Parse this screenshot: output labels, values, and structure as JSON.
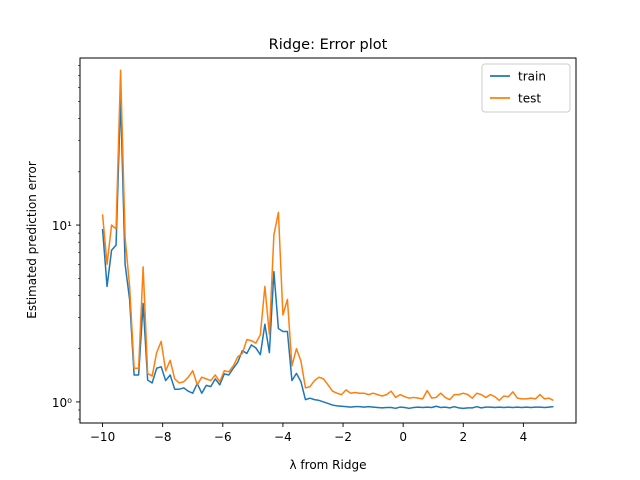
{
  "chart_data": {
    "type": "line",
    "title": "Ridge: Error plot",
    "xlabel": "λ from Ridge",
    "ylabel": "Estimated prediction error",
    "yscale": "log",
    "xlim": [
      -10.75,
      5.75
    ],
    "ylim": [
      0.76,
      88
    ],
    "x_ticks": [
      -10,
      -8,
      -6,
      -4,
      -2,
      0,
      2,
      4
    ],
    "x_tick_labels": [
      "−10",
      "−8",
      "−6",
      "−4",
      "−2",
      "0",
      "2",
      "4"
    ],
    "y_ticks": [
      1,
      10
    ],
    "y_tick_labels": [
      "10⁰",
      "10¹"
    ],
    "legend_position": "top-right",
    "series": [
      {
        "name": "train",
        "color": "#1f77b4",
        "points": [
          [
            -10.0,
            9.5
          ],
          [
            -9.85,
            4.5
          ],
          [
            -9.7,
            7.2
          ],
          [
            -9.55,
            7.7
          ],
          [
            -9.4,
            52.0
          ],
          [
            -9.25,
            6.0
          ],
          [
            -9.1,
            3.8
          ],
          [
            -8.95,
            1.42
          ],
          [
            -8.8,
            1.42
          ],
          [
            -8.65,
            3.6
          ],
          [
            -8.5,
            1.33
          ],
          [
            -8.35,
            1.28
          ],
          [
            -8.2,
            1.55
          ],
          [
            -8.05,
            1.58
          ],
          [
            -7.9,
            1.32
          ],
          [
            -7.75,
            1.42
          ],
          [
            -7.6,
            1.18
          ],
          [
            -7.45,
            1.18
          ],
          [
            -7.3,
            1.2
          ],
          [
            -7.15,
            1.15
          ],
          [
            -7.0,
            1.12
          ],
          [
            -6.85,
            1.27
          ],
          [
            -6.7,
            1.12
          ],
          [
            -6.55,
            1.24
          ],
          [
            -6.4,
            1.22
          ],
          [
            -6.25,
            1.35
          ],
          [
            -6.1,
            1.25
          ],
          [
            -5.95,
            1.44
          ],
          [
            -5.8,
            1.42
          ],
          [
            -5.65,
            1.55
          ],
          [
            -5.5,
            1.68
          ],
          [
            -5.35,
            1.95
          ],
          [
            -5.2,
            1.88
          ],
          [
            -5.05,
            2.1
          ],
          [
            -4.9,
            2.02
          ],
          [
            -4.75,
            1.85
          ],
          [
            -4.6,
            2.75
          ],
          [
            -4.45,
            1.9
          ],
          [
            -4.3,
            5.45
          ],
          [
            -4.15,
            2.6
          ],
          [
            -4.0,
            2.5
          ],
          [
            -3.85,
            2.5
          ],
          [
            -3.7,
            1.32
          ],
          [
            -3.55,
            1.45
          ],
          [
            -3.4,
            1.3
          ],
          [
            -3.25,
            1.03
          ],
          [
            -3.1,
            1.05
          ],
          [
            -2.95,
            1.03
          ],
          [
            -2.8,
            1.02
          ],
          [
            -2.65,
            1.0
          ],
          [
            -2.5,
            0.98
          ],
          [
            -2.35,
            0.96
          ],
          [
            -2.2,
            0.95
          ],
          [
            -2.05,
            0.945
          ],
          [
            -1.9,
            0.94
          ],
          [
            -1.75,
            0.935
          ],
          [
            -1.6,
            0.94
          ],
          [
            -1.45,
            0.94
          ],
          [
            -1.3,
            0.935
          ],
          [
            -1.15,
            0.94
          ],
          [
            -1.0,
            0.935
          ],
          [
            -0.85,
            0.93
          ],
          [
            -0.7,
            0.925
          ],
          [
            -0.55,
            0.93
          ],
          [
            -0.4,
            0.93
          ],
          [
            -0.25,
            0.92
          ],
          [
            -0.1,
            0.935
          ],
          [
            0.05,
            0.93
          ],
          [
            0.2,
            0.92
          ],
          [
            0.35,
            0.93
          ],
          [
            0.5,
            0.935
          ],
          [
            0.65,
            0.93
          ],
          [
            0.8,
            0.935
          ],
          [
            0.95,
            0.93
          ],
          [
            1.1,
            0.945
          ],
          [
            1.25,
            0.93
          ],
          [
            1.4,
            0.935
          ],
          [
            1.55,
            0.925
          ],
          [
            1.7,
            0.94
          ],
          [
            1.85,
            0.925
          ],
          [
            2.0,
            0.92
          ],
          [
            2.15,
            0.925
          ],
          [
            2.3,
            0.925
          ],
          [
            2.45,
            0.94
          ],
          [
            2.6,
            0.925
          ],
          [
            2.75,
            0.935
          ],
          [
            2.9,
            0.935
          ],
          [
            3.05,
            0.93
          ],
          [
            3.2,
            0.935
          ],
          [
            3.35,
            0.93
          ],
          [
            3.5,
            0.935
          ],
          [
            3.65,
            0.93
          ],
          [
            3.8,
            0.935
          ],
          [
            3.95,
            0.93
          ],
          [
            4.1,
            0.935
          ],
          [
            4.25,
            0.93
          ],
          [
            4.4,
            0.935
          ],
          [
            4.55,
            0.935
          ],
          [
            4.7,
            0.93
          ],
          [
            4.85,
            0.935
          ],
          [
            5.0,
            0.94
          ]
        ]
      },
      {
        "name": "test",
        "color": "#ff7f0e",
        "points": [
          [
            -10.0,
            11.5
          ],
          [
            -9.85,
            6.0
          ],
          [
            -9.7,
            10.0
          ],
          [
            -9.55,
            9.5
          ],
          [
            -9.4,
            75.0
          ],
          [
            -9.25,
            8.5
          ],
          [
            -9.1,
            4.5
          ],
          [
            -8.95,
            1.55
          ],
          [
            -8.8,
            1.55
          ],
          [
            -8.65,
            5.8
          ],
          [
            -8.5,
            1.45
          ],
          [
            -8.35,
            1.4
          ],
          [
            -8.2,
            1.9
          ],
          [
            -8.05,
            2.2
          ],
          [
            -7.9,
            1.5
          ],
          [
            -7.75,
            1.72
          ],
          [
            -7.6,
            1.35
          ],
          [
            -7.45,
            1.28
          ],
          [
            -7.3,
            1.3
          ],
          [
            -7.15,
            1.38
          ],
          [
            -7.0,
            1.5
          ],
          [
            -6.85,
            1.25
          ],
          [
            -6.7,
            1.38
          ],
          [
            -6.55,
            1.35
          ],
          [
            -6.4,
            1.32
          ],
          [
            -6.25,
            1.42
          ],
          [
            -6.1,
            1.3
          ],
          [
            -5.95,
            1.5
          ],
          [
            -5.8,
            1.48
          ],
          [
            -5.65,
            1.6
          ],
          [
            -5.5,
            1.8
          ],
          [
            -5.35,
            1.88
          ],
          [
            -5.2,
            2.25
          ],
          [
            -5.05,
            2.22
          ],
          [
            -4.9,
            2.15
          ],
          [
            -4.75,
            2.4
          ],
          [
            -4.6,
            4.5
          ],
          [
            -4.45,
            2.4
          ],
          [
            -4.3,
            8.8
          ],
          [
            -4.15,
            11.8
          ],
          [
            -4.0,
            3.1
          ],
          [
            -3.85,
            3.8
          ],
          [
            -3.7,
            1.6
          ],
          [
            -3.55,
            2.0
          ],
          [
            -3.4,
            1.7
          ],
          [
            -3.25,
            1.2
          ],
          [
            -3.1,
            1.22
          ],
          [
            -2.95,
            1.32
          ],
          [
            -2.8,
            1.38
          ],
          [
            -2.65,
            1.35
          ],
          [
            -2.5,
            1.25
          ],
          [
            -2.35,
            1.15
          ],
          [
            -2.2,
            1.12
          ],
          [
            -2.05,
            1.1
          ],
          [
            -1.9,
            1.17
          ],
          [
            -1.75,
            1.12
          ],
          [
            -1.6,
            1.13
          ],
          [
            -1.45,
            1.12
          ],
          [
            -1.3,
            1.12
          ],
          [
            -1.15,
            1.1
          ],
          [
            -1.0,
            1.12
          ],
          [
            -0.85,
            1.1
          ],
          [
            -0.7,
            1.08
          ],
          [
            -0.55,
            1.1
          ],
          [
            -0.4,
            1.15
          ],
          [
            -0.25,
            1.06
          ],
          [
            -0.1,
            1.1
          ],
          [
            0.05,
            1.07
          ],
          [
            0.2,
            1.05
          ],
          [
            0.35,
            1.06
          ],
          [
            0.5,
            1.05
          ],
          [
            0.65,
            1.04
          ],
          [
            0.8,
            1.16
          ],
          [
            0.95,
            1.05
          ],
          [
            1.1,
            1.06
          ],
          [
            1.25,
            1.12
          ],
          [
            1.4,
            1.06
          ],
          [
            1.55,
            1.03
          ],
          [
            1.7,
            1.1
          ],
          [
            1.85,
            1.1
          ],
          [
            2.0,
            1.12
          ],
          [
            2.15,
            1.1
          ],
          [
            2.3,
            1.05
          ],
          [
            2.45,
            1.12
          ],
          [
            2.6,
            1.1
          ],
          [
            2.75,
            1.06
          ],
          [
            2.9,
            1.1
          ],
          [
            3.05,
            1.07
          ],
          [
            3.2,
            1.02
          ],
          [
            3.35,
            1.08
          ],
          [
            3.5,
            1.07
          ],
          [
            3.65,
            1.14
          ],
          [
            3.8,
            1.05
          ],
          [
            3.95,
            1.04
          ],
          [
            4.1,
            1.04
          ],
          [
            4.25,
            1.05
          ],
          [
            4.4,
            1.04
          ],
          [
            4.55,
            1.1
          ],
          [
            4.7,
            1.04
          ],
          [
            4.85,
            1.05
          ],
          [
            5.0,
            1.02
          ]
        ]
      }
    ]
  }
}
